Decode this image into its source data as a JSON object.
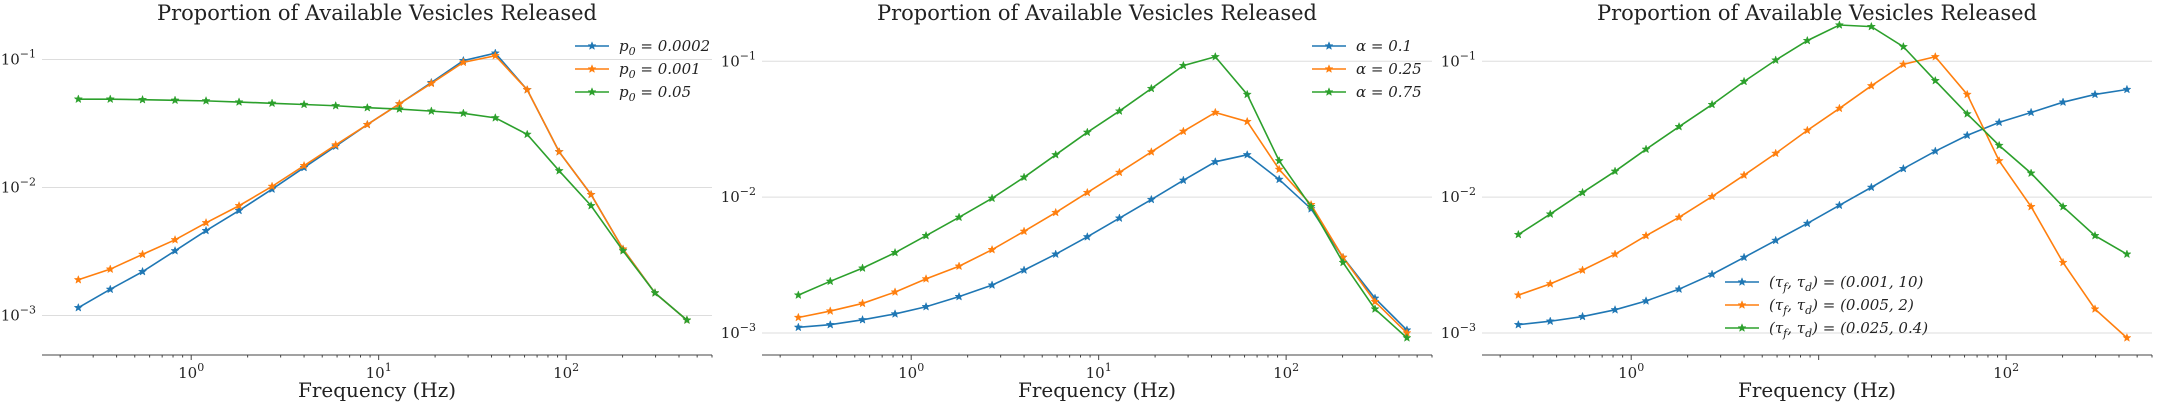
{
  "chart_data": [
    {
      "type": "line",
      "title": "Proportion of Available Vesicles Released",
      "xlabel": "Frequency (Hz)",
      "ylabel": "",
      "xscale": "log",
      "yscale": "log",
      "xlim": [
        0.16,
        600
      ],
      "ylim": [
        0.0005,
        0.17
      ],
      "xticks": [
        {
          "v": 1,
          "label": "10^0"
        },
        {
          "v": 10,
          "label": "10^1"
        },
        {
          "v": 100,
          "label": "10^2"
        }
      ],
      "yticks": [
        {
          "v": 0.001,
          "label": "10^-3"
        },
        {
          "v": 0.01,
          "label": "10^-2"
        },
        {
          "v": 0.1,
          "label": "10^-1"
        }
      ],
      "grid": "horizontal",
      "legend": "top-right",
      "x": [
        0.25,
        0.37,
        0.55,
        0.82,
        1.2,
        1.8,
        2.7,
        4.0,
        5.9,
        8.7,
        12.9,
        19.1,
        28.3,
        41.9,
        62.0,
        91.8,
        135.9,
        201.2,
        297.9,
        441.0
      ],
      "series": [
        {
          "name": "p_0 = 0.0002",
          "color": "#1f77b4",
          "values": [
            0.00115,
            0.0016,
            0.0022,
            0.0032,
            0.0046,
            0.0066,
            0.0097,
            0.0143,
            0.021,
            0.031,
            0.045,
            0.066,
            0.098,
            0.112,
            0.058,
            0.019,
            0.0088,
            0.0033,
            0.0015,
            0.00092
          ]
        },
        {
          "name": "p_0 = 0.001",
          "color": "#ff7f0e",
          "values": [
            0.0019,
            0.0023,
            0.003,
            0.0039,
            0.0053,
            0.0072,
            0.0102,
            0.0148,
            0.0215,
            0.031,
            0.045,
            0.065,
            0.095,
            0.107,
            0.058,
            0.019,
            0.0088,
            0.0033,
            0.0015,
            0.00092
          ]
        },
        {
          "name": "p_0 = 0.05",
          "color": "#2ca02c",
          "values": [
            0.049,
            0.049,
            0.0485,
            0.048,
            0.0475,
            0.0465,
            0.0455,
            0.0445,
            0.0435,
            0.042,
            0.041,
            0.0395,
            0.038,
            0.035,
            0.026,
            0.0135,
            0.0072,
            0.0032,
            0.0015,
            0.00092
          ]
        }
      ]
    },
    {
      "type": "line",
      "title": "Proportion of Available Vesicles Released",
      "xlabel": "Frequency (Hz)",
      "ylabel": "",
      "xscale": "log",
      "yscale": "log",
      "xlim": [
        0.16,
        600
      ],
      "ylim": [
        0.0007,
        0.17
      ],
      "xticks": [
        {
          "v": 1,
          "label": "10^0"
        },
        {
          "v": 10,
          "label": "10^1"
        },
        {
          "v": 100,
          "label": "10^2"
        }
      ],
      "yticks": [
        {
          "v": 0.001,
          "label": "10^-3"
        },
        {
          "v": 0.01,
          "label": "10^-2"
        },
        {
          "v": 0.1,
          "label": "10^-1"
        }
      ],
      "grid": "horizontal",
      "legend": "top-right",
      "x": [
        0.25,
        0.37,
        0.55,
        0.82,
        1.2,
        1.8,
        2.7,
        4.0,
        5.9,
        8.7,
        12.9,
        19.1,
        28.3,
        41.9,
        62.0,
        91.8,
        135.9,
        201.2,
        297.9,
        441.0
      ],
      "series": [
        {
          "name": "α = 0.1",
          "color": "#1f77b4",
          "values": [
            0.0011,
            0.00115,
            0.00125,
            0.00138,
            0.00156,
            0.00185,
            0.00225,
            0.0029,
            0.0038,
            0.0051,
            0.007,
            0.0096,
            0.0133,
            0.0182,
            0.0205,
            0.0135,
            0.0082,
            0.0036,
            0.0018,
            0.00105
          ]
        },
        {
          "name": "α = 0.25",
          "color": "#ff7f0e",
          "values": [
            0.0013,
            0.00145,
            0.00165,
            0.002,
            0.0025,
            0.0031,
            0.0041,
            0.0056,
            0.0077,
            0.0108,
            0.0152,
            0.0215,
            0.0305,
            0.042,
            0.036,
            0.016,
            0.0088,
            0.0036,
            0.0017,
            0.001
          ]
        },
        {
          "name": "α = 0.75",
          "color": "#2ca02c",
          "values": [
            0.0019,
            0.0024,
            0.003,
            0.0039,
            0.0052,
            0.0071,
            0.0098,
            0.014,
            0.0205,
            0.03,
            0.043,
            0.063,
            0.093,
            0.108,
            0.057,
            0.0185,
            0.0085,
            0.0033,
            0.0015,
            0.00092
          ]
        }
      ]
    },
    {
      "type": "line",
      "title": "Proportion of Available Vesicles Released",
      "xlabel": "Frequency (Hz)",
      "ylabel": "",
      "xscale": "log",
      "yscale": "log",
      "xlim": [
        0.16,
        600
      ],
      "ylim": [
        0.0007,
        0.17
      ],
      "xticks": [
        {
          "v": 1,
          "label": "10^0"
        },
        {
          "v": 100,
          "label": "10^2"
        }
      ],
      "yticks": [
        {
          "v": 0.001,
          "label": "10^-3"
        },
        {
          "v": 0.01,
          "label": "10^-2"
        },
        {
          "v": 0.1,
          "label": "10^-1"
        }
      ],
      "grid": "horizontal",
      "legend": "lower-center",
      "x": [
        0.25,
        0.37,
        0.55,
        0.82,
        1.2,
        1.8,
        2.7,
        4.0,
        5.9,
        8.7,
        12.9,
        19.1,
        28.3,
        41.9,
        62.0,
        91.8,
        135.9,
        201.2,
        297.9,
        441.0
      ],
      "series": [
        {
          "name": "(τ_f, τ_d) = (0.001, 10)",
          "color": "#1f77b4",
          "values": [
            0.00115,
            0.00122,
            0.00132,
            0.00148,
            0.00172,
            0.0021,
            0.0027,
            0.0036,
            0.0048,
            0.0064,
            0.0087,
            0.0118,
            0.0162,
            0.0218,
            0.0285,
            0.0355,
            0.042,
            0.05,
            0.057,
            0.062
          ]
        },
        {
          "name": "(τ_f, τ_d) = (0.005, 2)",
          "color": "#ff7f0e",
          "values": [
            0.0019,
            0.0023,
            0.0029,
            0.0038,
            0.0052,
            0.0071,
            0.0101,
            0.0145,
            0.021,
            0.031,
            0.045,
            0.066,
            0.095,
            0.108,
            0.057,
            0.0185,
            0.0085,
            0.0033,
            0.0015,
            0.00092
          ]
        },
        {
          "name": "(τ_f, τ_d) = (0.025, 0.4)",
          "color": "#2ca02c",
          "values": [
            0.0053,
            0.0075,
            0.0108,
            0.0155,
            0.0225,
            0.033,
            0.048,
            0.071,
            0.102,
            0.142,
            0.185,
            0.18,
            0.128,
            0.072,
            0.041,
            0.024,
            0.015,
            0.0085,
            0.0052,
            0.0038
          ]
        }
      ]
    }
  ]
}
